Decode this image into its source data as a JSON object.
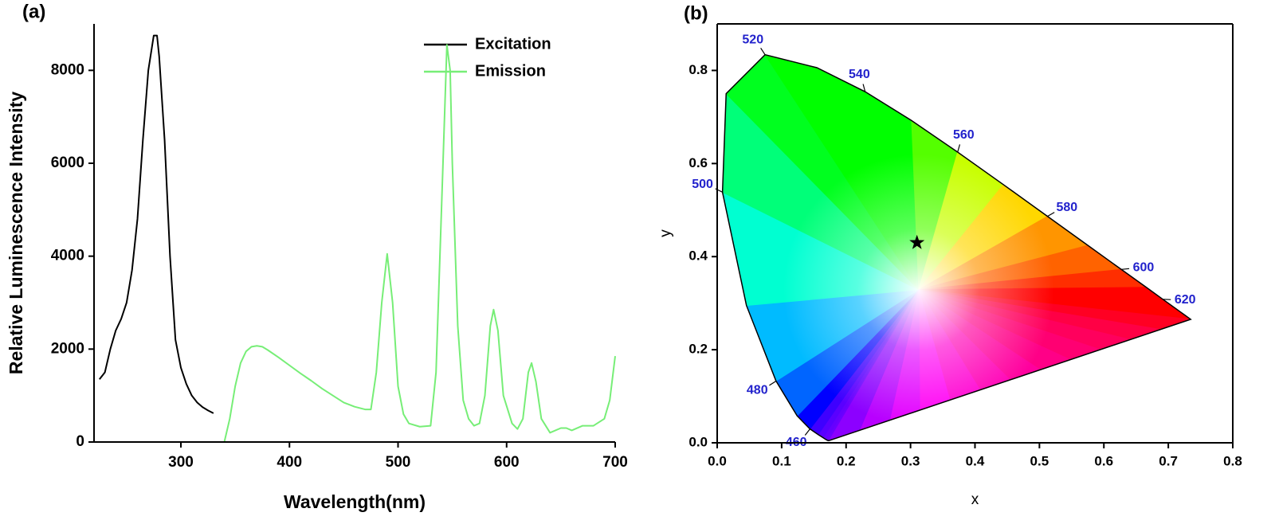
{
  "chart_data": [
    {
      "type": "line",
      "label": "(a)",
      "xlabel": "Wavelength(nm)",
      "ylabel": "Relative Luminescence Intensity",
      "xlim": [
        220,
        700
      ],
      "ylim": [
        0,
        9000
      ],
      "xticks": [
        300,
        400,
        500,
        600,
        700
      ],
      "yticks": [
        0,
        2000,
        4000,
        6000,
        8000
      ],
      "legend": "upper right",
      "series": [
        {
          "name": "Excitation",
          "color": "#000000",
          "x": [
            225,
            230,
            235,
            240,
            245,
            250,
            255,
            260,
            265,
            270,
            275,
            278,
            280,
            285,
            290,
            295,
            300,
            305,
            310,
            315,
            320,
            325,
            330
          ],
          "values": [
            1350,
            1500,
            2000,
            2400,
            2650,
            3000,
            3700,
            4800,
            6500,
            8000,
            8750,
            8750,
            8300,
            6500,
            4000,
            2200,
            1600,
            1250,
            1000,
            850,
            750,
            680,
            620
          ]
        },
        {
          "name": "Emission",
          "color": "#77ee77",
          "x": [
            340,
            345,
            350,
            355,
            360,
            365,
            370,
            375,
            380,
            390,
            400,
            410,
            420,
            430,
            440,
            450,
            460,
            470,
            475,
            480,
            485,
            490,
            495,
            500,
            505,
            510,
            520,
            530,
            535,
            540,
            545,
            548,
            550,
            555,
            560,
            565,
            570,
            575,
            580,
            585,
            588,
            592,
            597,
            605,
            610,
            615,
            620,
            623,
            627,
            632,
            640,
            650,
            655,
            660,
            670,
            680,
            690,
            695,
            700
          ],
          "values": [
            0,
            500,
            1200,
            1700,
            1950,
            2050,
            2070,
            2050,
            1980,
            1820,
            1650,
            1480,
            1320,
            1150,
            1000,
            850,
            760,
            700,
            700,
            1500,
            3000,
            4050,
            3000,
            1200,
            600,
            400,
            330,
            350,
            1500,
            5000,
            8550,
            8000,
            6000,
            2500,
            900,
            500,
            350,
            400,
            1000,
            2500,
            2850,
            2400,
            1000,
            400,
            280,
            500,
            1500,
            1700,
            1300,
            500,
            200,
            300,
            300,
            250,
            350,
            350,
            500,
            900,
            1850
          ]
        }
      ]
    },
    {
      "type": "chromaticity",
      "label": "(b)",
      "xlabel": "x",
      "ylabel": "y",
      "xlim": [
        0,
        0.8
      ],
      "ylim": [
        0,
        0.9
      ],
      "xticks": [
        {
          "value": 0,
          "label": "0.0"
        },
        0.1,
        0.2,
        0.3,
        0.4,
        0.5,
        0.6,
        0.7,
        0.8
      ],
      "yticks": [
        {
          "value": 0,
          "label": "0.0"
        },
        0.2,
        0.4,
        0.6,
        0.8
      ],
      "box": true,
      "locus": {
        "x": [
          0.1741,
          0.1738,
          0.1733,
          0.1726,
          0.1714,
          0.1689,
          0.1644,
          0.1566,
          0.144,
          0.1241,
          0.0913,
          0.0454,
          0.0082,
          0.0139,
          0.0743,
          0.1547,
          0.2296,
          0.3016,
          0.3731,
          0.4441,
          0.5125,
          0.5752,
          0.627,
          0.6658,
          0.6915,
          0.7079,
          0.719,
          0.726,
          0.73,
          0.7334,
          0.7347
        ],
        "y": [
          0.005,
          0.0049,
          0.0048,
          0.0048,
          0.0051,
          0.0069,
          0.0109,
          0.0177,
          0.0297,
          0.0578,
          0.1327,
          0.295,
          0.5384,
          0.7502,
          0.8338,
          0.8059,
          0.7543,
          0.6923,
          0.6245,
          0.5547,
          0.4866,
          0.4242,
          0.3725,
          0.334,
          0.3083,
          0.292,
          0.2809,
          0.274,
          0.27,
          0.2666,
          0.2653
        ]
      },
      "wavelength_labels": {
        "color": "#2222cc",
        "labels": [
          460,
          480,
          500,
          520,
          540,
          560,
          580,
          600,
          620
        ],
        "x": [
          0.144,
          0.0913,
          0.0082,
          0.0743,
          0.2296,
          0.3731,
          0.5125,
          0.627,
          0.6915
        ],
        "y": [
          0.0297,
          0.1327,
          0.5384,
          0.8338,
          0.7543,
          0.6245,
          0.4866,
          0.3725,
          0.3083
        ]
      },
      "points": {
        "color": "#000000",
        "x": [
          0.31
        ],
        "y": [
          0.43
        ]
      }
    }
  ]
}
